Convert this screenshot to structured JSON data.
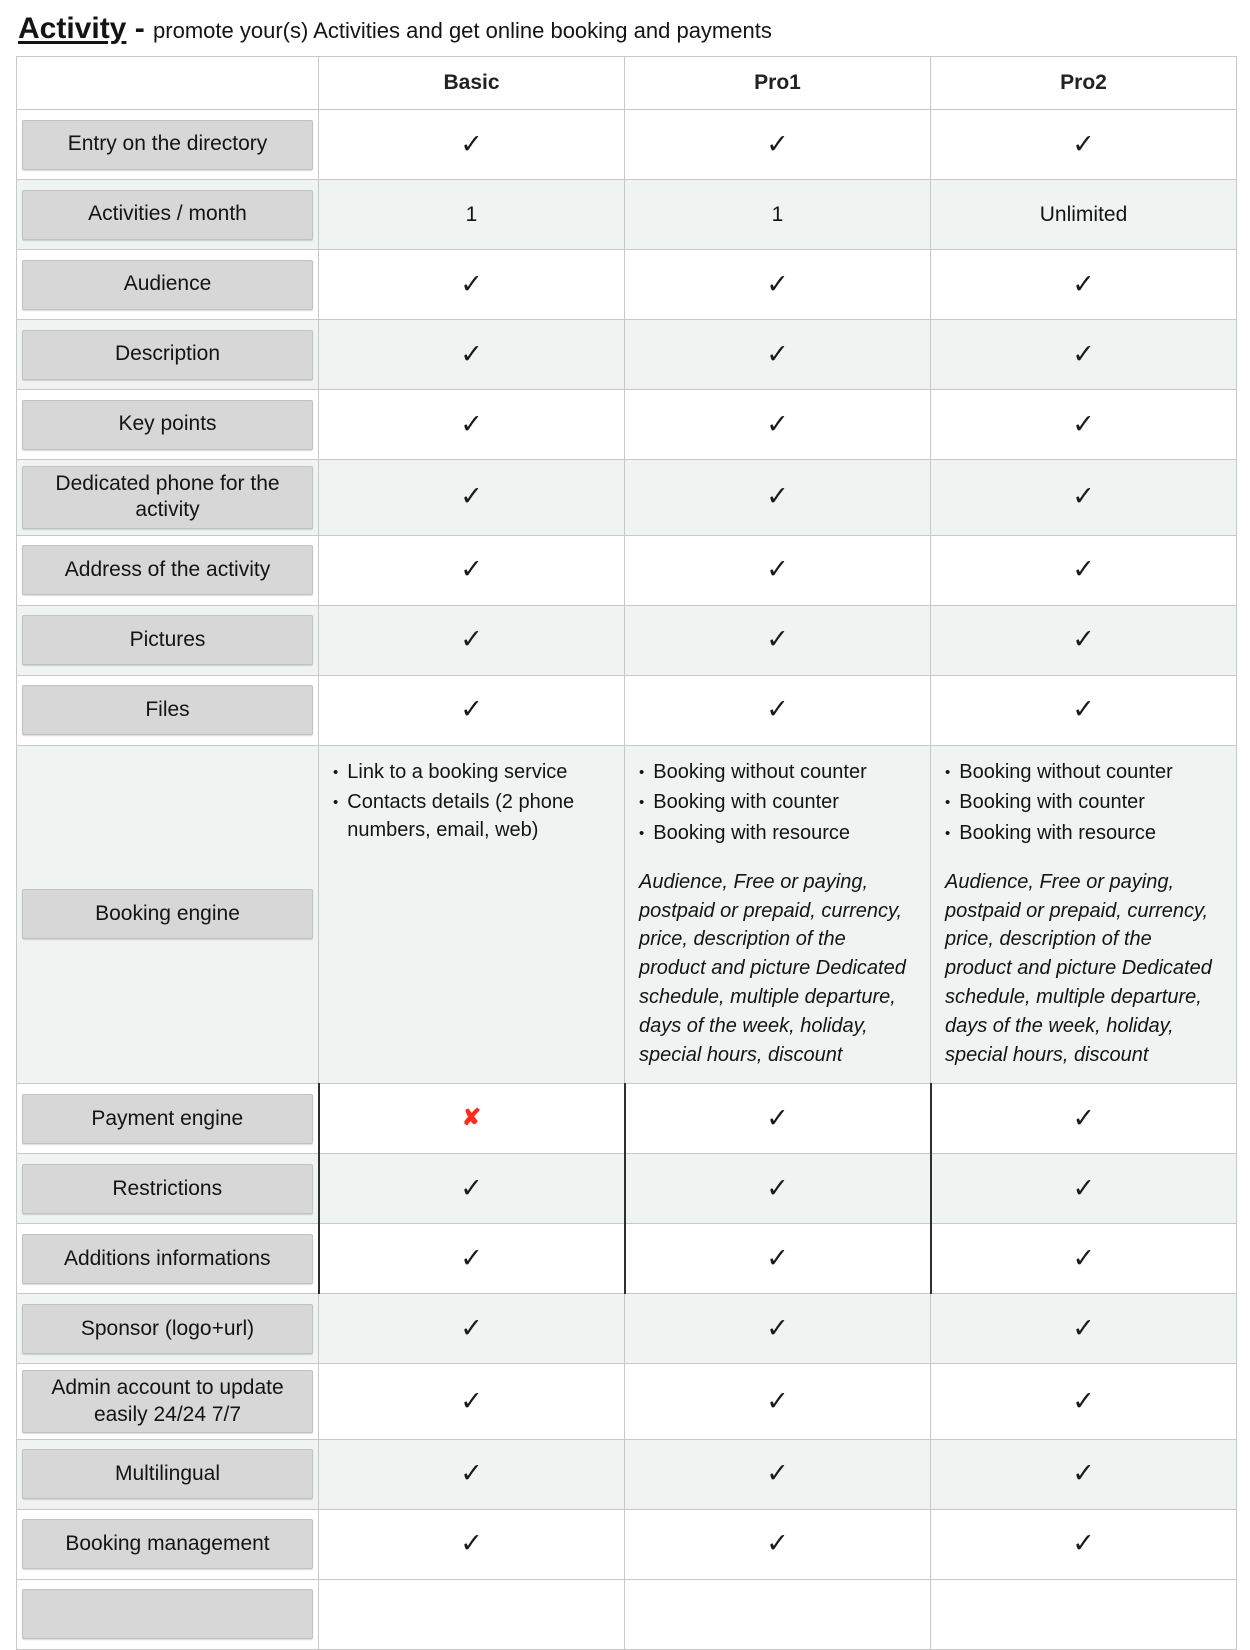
{
  "header": {
    "title": "Activity",
    "separator": " - ",
    "subtitle": "promote your(s) Activities and get online booking and payments"
  },
  "icons": {
    "check": "✓",
    "cross": "✘"
  },
  "colors": {
    "check": "#1a1a1a",
    "cross": "#fe2c1a",
    "row_tint": "#eff4f2",
    "chip_bg": "#d7d7d7"
  },
  "table": {
    "columns": [
      "Basic",
      "Pro1",
      "Pro2"
    ],
    "rows": [
      {
        "label": "Entry on the directory",
        "cells": [
          {
            "icon": "check"
          },
          {
            "icon": "check"
          },
          {
            "icon": "check"
          }
        ]
      },
      {
        "label": "Activities / month",
        "cells": [
          {
            "text": "1"
          },
          {
            "text": "1"
          },
          {
            "text": "Unlimited"
          }
        ]
      },
      {
        "label": "Audience",
        "cells": [
          {
            "icon": "check"
          },
          {
            "icon": "check"
          },
          {
            "icon": "check"
          }
        ]
      },
      {
        "label": "Description",
        "cells": [
          {
            "icon": "check"
          },
          {
            "icon": "check"
          },
          {
            "icon": "check"
          }
        ]
      },
      {
        "label": "Key points",
        "cells": [
          {
            "icon": "check"
          },
          {
            "icon": "check"
          },
          {
            "icon": "check"
          }
        ]
      },
      {
        "label": "Dedicated phone for the activity",
        "cells": [
          {
            "icon": "check"
          },
          {
            "icon": "check"
          },
          {
            "icon": "check"
          }
        ]
      },
      {
        "label": "Address of the activity",
        "cells": [
          {
            "icon": "check"
          },
          {
            "icon": "check"
          },
          {
            "icon": "check"
          }
        ]
      },
      {
        "label": "Pictures",
        "cells": [
          {
            "icon": "check"
          },
          {
            "icon": "check"
          },
          {
            "icon": "check"
          }
        ]
      },
      {
        "label": "Files",
        "cells": [
          {
            "icon": "check"
          },
          {
            "icon": "check"
          },
          {
            "icon": "check"
          }
        ]
      },
      {
        "label": "Booking engine",
        "cells": [
          {
            "bullets": [
              "Link to a booking service",
              "Contacts details (2 phone numbers, email, web)"
            ]
          },
          {
            "bullets": [
              "Booking without counter",
              "Booking with counter",
              "Booking with resource"
            ],
            "note": "Audience, Free or paying, postpaid or prepaid, currency, price, description of the product and picture Dedicated schedule, multiple departure, days of the week, holiday, special hours, discount"
          },
          {
            "bullets": [
              "Booking without counter",
              "Booking with counter",
              "Booking with resource"
            ],
            "note": "Audience, Free or paying, postpaid or prepaid, currency, price, description of the product and picture Dedicated schedule, multiple departure, days of the week, holiday, special hours, discount"
          }
        ]
      },
      {
        "label": "Payment engine",
        "dark": true,
        "cells": [
          {
            "icon": "cross"
          },
          {
            "icon": "check"
          },
          {
            "icon": "check"
          }
        ]
      },
      {
        "label": "Restrictions",
        "dark": true,
        "cells": [
          {
            "icon": "check"
          },
          {
            "icon": "check"
          },
          {
            "icon": "check"
          }
        ]
      },
      {
        "label": "Additions informations",
        "dark": true,
        "cells": [
          {
            "icon": "check"
          },
          {
            "icon": "check"
          },
          {
            "icon": "check"
          }
        ]
      },
      {
        "label": "Sponsor (logo+url)",
        "cells": [
          {
            "icon": "check"
          },
          {
            "icon": "check"
          },
          {
            "icon": "check"
          }
        ]
      },
      {
        "label": "Admin account to update easily 24/24 7/7",
        "cells": [
          {
            "icon": "check"
          },
          {
            "icon": "check"
          },
          {
            "icon": "check"
          }
        ]
      },
      {
        "label": "Multilingual",
        "cells": [
          {
            "icon": "check"
          },
          {
            "icon": "check"
          },
          {
            "icon": "check"
          }
        ]
      },
      {
        "label": "Booking management",
        "cells": [
          {
            "icon": "check"
          },
          {
            "icon": "check"
          },
          {
            "icon": "check"
          }
        ]
      }
    ],
    "truncated": true
  }
}
